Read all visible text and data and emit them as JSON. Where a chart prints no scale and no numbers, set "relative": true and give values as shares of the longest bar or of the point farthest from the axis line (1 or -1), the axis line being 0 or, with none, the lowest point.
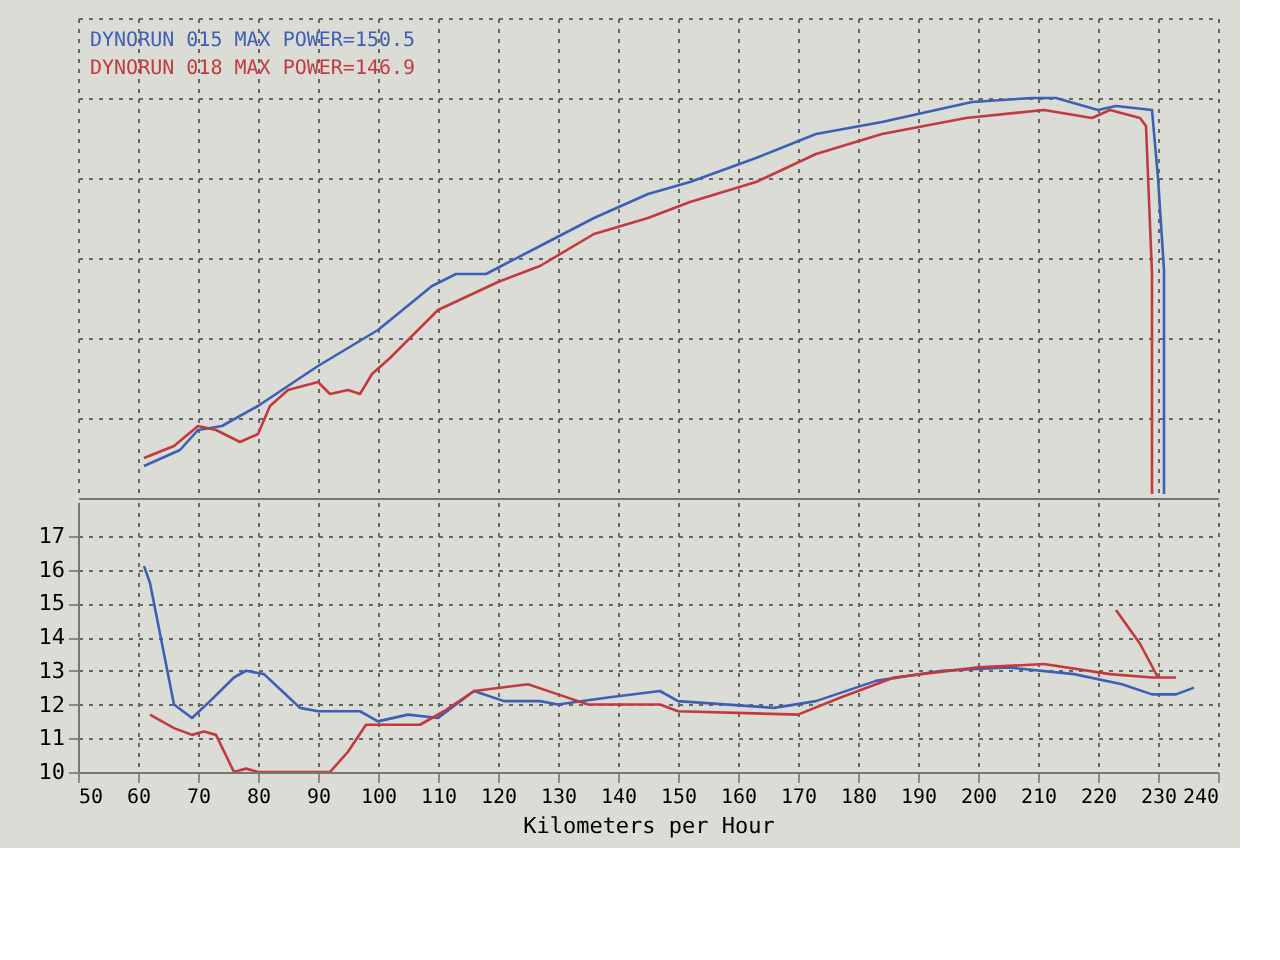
{
  "chart_data": [
    {
      "type": "line",
      "relative": true,
      "xlim": [
        50,
        240
      ],
      "xticks": [
        50,
        60,
        70,
        80,
        90,
        100,
        110,
        120,
        130,
        140,
        150,
        160,
        170,
        180,
        190,
        200,
        210,
        220,
        230,
        240
      ],
      "tick_labels": false,
      "grid": true,
      "legend": "top left",
      "series": [
        {
          "name": "DYNORUN 015  MAX POWER=150.5",
          "color": "#3d5fb5",
          "x": [
            61,
            67,
            70,
            74,
            80,
            90,
            100,
            109,
            113,
            118,
            127,
            136,
            145,
            152,
            163,
            173,
            184,
            190,
            199,
            209,
            213,
            220,
            223,
            229,
            230,
            231,
            231
          ],
          "values": [
            0.08,
            0.12,
            0.17,
            0.18,
            0.23,
            0.33,
            0.42,
            0.53,
            0.56,
            0.56,
            0.63,
            0.7,
            0.76,
            0.79,
            0.85,
            0.91,
            0.94,
            0.96,
            0.99,
            1.0,
            1.0,
            0.97,
            0.98,
            0.97,
            0.8,
            0.57,
            0.01
          ]
        },
        {
          "name": "DYNORUN 018  MAX POWER=146.9",
          "color": "#c23a3e",
          "x": [
            61,
            66,
            70,
            73,
            77,
            80,
            82,
            85,
            90,
            92,
            95,
            97,
            99,
            102,
            110,
            120,
            127,
            136,
            145,
            152,
            163,
            173,
            184,
            198,
            211,
            219,
            222,
            227,
            228,
            229,
            229
          ],
          "values": [
            0.1,
            0.13,
            0.18,
            0.17,
            0.14,
            0.16,
            0.23,
            0.27,
            0.29,
            0.26,
            0.27,
            0.26,
            0.31,
            0.35,
            0.47,
            0.54,
            0.58,
            0.66,
            0.7,
            0.74,
            0.79,
            0.86,
            0.91,
            0.95,
            0.97,
            0.95,
            0.97,
            0.95,
            0.93,
            0.56,
            0.01
          ]
        }
      ]
    },
    {
      "type": "line",
      "xlabel": "Kilometers per Hour",
      "xlim": [
        50,
        240
      ],
      "xticks": [
        50,
        60,
        70,
        80,
        90,
        100,
        110,
        120,
        130,
        140,
        150,
        160,
        170,
        180,
        190,
        200,
        210,
        220,
        230,
        240
      ],
      "ylim": [
        10,
        18
      ],
      "yticks": [
        10,
        11,
        12,
        13,
        14,
        15,
        16,
        17
      ],
      "grid": true,
      "series": [
        {
          "color": "#3d5fb5",
          "x": [
            61,
            62,
            64,
            66,
            69,
            72,
            76,
            78,
            81,
            84,
            87,
            90,
            97,
            100,
            105,
            110,
            116,
            121,
            127,
            130,
            138,
            147,
            150,
            166,
            173,
            183,
            194,
            205,
            216,
            224,
            229,
            233,
            236
          ],
          "values": [
            16.1,
            15.6,
            13.8,
            12.0,
            11.6,
            12.1,
            12.8,
            13.0,
            12.9,
            12.4,
            11.9,
            11.8,
            11.8,
            11.5,
            11.7,
            11.6,
            12.4,
            12.1,
            12.1,
            12.0,
            12.2,
            12.4,
            12.1,
            11.9,
            12.1,
            12.7,
            13.0,
            13.1,
            12.9,
            12.6,
            12.3,
            12.3,
            12.5
          ]
        },
        {
          "color": "#c23a3e",
          "x": [
            62,
            66,
            69,
            71,
            73,
            76,
            78,
            80,
            92,
            95,
            98,
            107,
            111,
            116,
            125,
            130,
            135,
            147,
            150,
            170,
            177,
            186,
            200,
            211,
            222,
            229,
            233
          ],
          "values": [
            11.7,
            11.3,
            11.1,
            11.2,
            11.1,
            10.0,
            10.1,
            10.0,
            10.0,
            10.6,
            11.4,
            11.4,
            11.8,
            12.4,
            12.6,
            12.3,
            12.0,
            12.0,
            11.8,
            11.7,
            12.2,
            12.8,
            13.1,
            13.2,
            12.9,
            12.8,
            12.8
          ]
        },
        {
          "color": "#c23a3e",
          "x": [
            223,
            227,
            230
          ],
          "values": [
            14.8,
            13.8,
            12.8
          ]
        }
      ]
    }
  ]
}
